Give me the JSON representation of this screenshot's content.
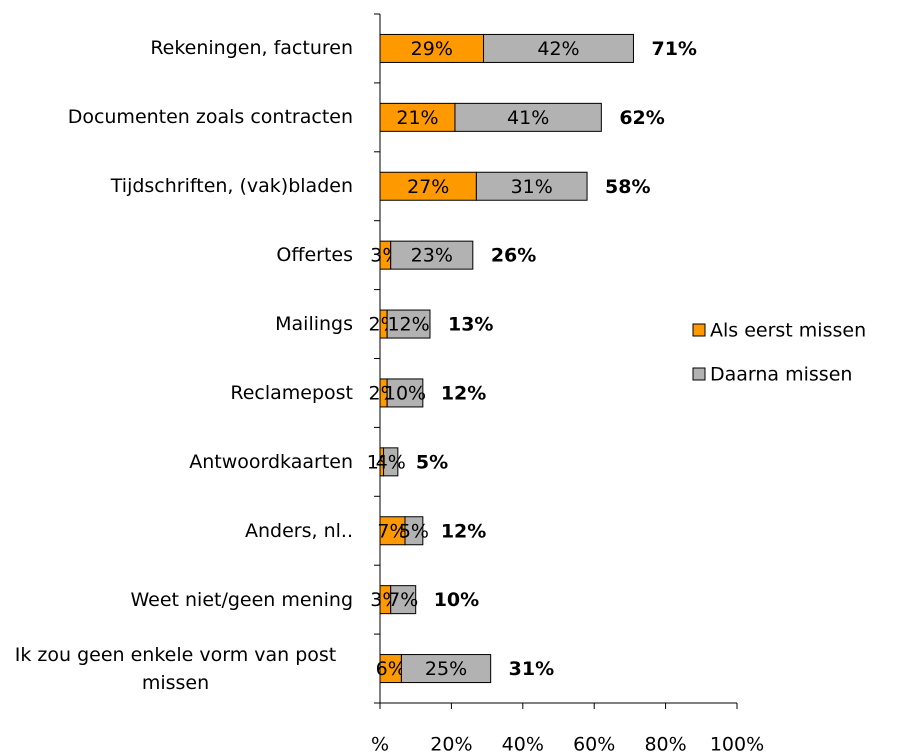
{
  "chart_data": {
    "type": "stacked-barh",
    "categories": [
      "Rekeningen, facturen",
      "Documenten zoals contracten",
      "Tijdschriften, (vak)bladen",
      "Offertes",
      "Mailings",
      "Reclamepost",
      "Antwoordkaarten",
      "Anders, nl..",
      "Weet niet/geen mening",
      "Ik zou geen enkele vorm van post missen"
    ],
    "series": [
      {
        "name": "Als eerst missen",
        "color": "#ff9900",
        "values": [
          29,
          21,
          27,
          3,
          2,
          2,
          1,
          7,
          3,
          6
        ],
        "value_labels": [
          "29%",
          "21%",
          "27%",
          "3%",
          "2%",
          "2%",
          "1%",
          "7%",
          "3%",
          "6%"
        ]
      },
      {
        "name": "Daarna missen",
        "color": "#b2b2b2",
        "values": [
          42,
          41,
          31,
          23,
          12,
          10,
          4,
          5,
          7,
          25
        ],
        "value_labels": [
          "42%",
          "41%",
          "31%",
          "23%",
          "12%",
          "10%",
          "4%",
          "5%",
          "7%",
          "25%"
        ]
      }
    ],
    "totals": [
      "71%",
      "62%",
      "58%",
      "26%",
      "13%",
      "12%",
      "5%",
      "12%",
      "10%",
      "31%"
    ],
    "xlim": [
      0,
      100
    ],
    "xticks": [
      {
        "value": 0,
        "label": "%"
      },
      {
        "value": 20,
        "label": "20%"
      },
      {
        "value": 40,
        "label": "40%"
      },
      {
        "value": 60,
        "label": "60%"
      },
      {
        "value": 80,
        "label": "80%"
      },
      {
        "value": 100,
        "label": "100%"
      }
    ],
    "legend": "right"
  }
}
